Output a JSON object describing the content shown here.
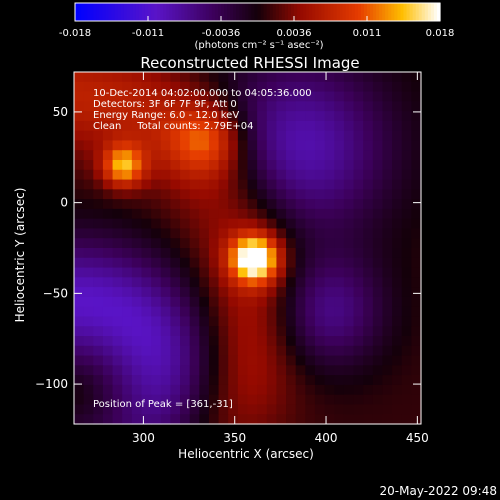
{
  "chart_data": {
    "type": "heatmap",
    "title": "Reconstructed RHESSI Image",
    "xlabel": "Heliocentric X (arcsec)",
    "ylabel": "Heliocentric Y (arcsec)",
    "xlim": [
      262,
      452
    ],
    "ylim": [
      -122,
      72
    ],
    "xticks": [
      300,
      350,
      400,
      450
    ],
    "yticks": [
      50,
      0,
      -50,
      -100
    ],
    "colorbar": {
      "ticks": [
        "-0.018",
        "-0.011",
        "-0.0036",
        "0.0036",
        "0.011",
        "0.018"
      ],
      "range": [
        -0.018,
        0.018
      ],
      "unit_label": "(photons cm⁻² s⁻¹ asec⁻²)"
    },
    "sources": [
      {
        "x": 361,
        "y": -31,
        "peak": 0.018,
        "width": 9
      },
      {
        "x": 289,
        "y": 20,
        "peak": 0.012,
        "width": 8
      },
      {
        "x": 335,
        "y": 35,
        "peak": 0.008,
        "width": 14
      }
    ],
    "annotations": [
      "10-Dec-2014 04:02:00.000 to 04:05:36.000",
      "Detectors: 3F 6F 7F 9F, Att 0",
      "Energy Range: 6.0 - 12.0 keV",
      "Clean     Total counts: 2.79E+04"
    ],
    "peak_text": "Position of Peak = [361,-31]",
    "date_stamp": "20-May-2022 09:48"
  }
}
